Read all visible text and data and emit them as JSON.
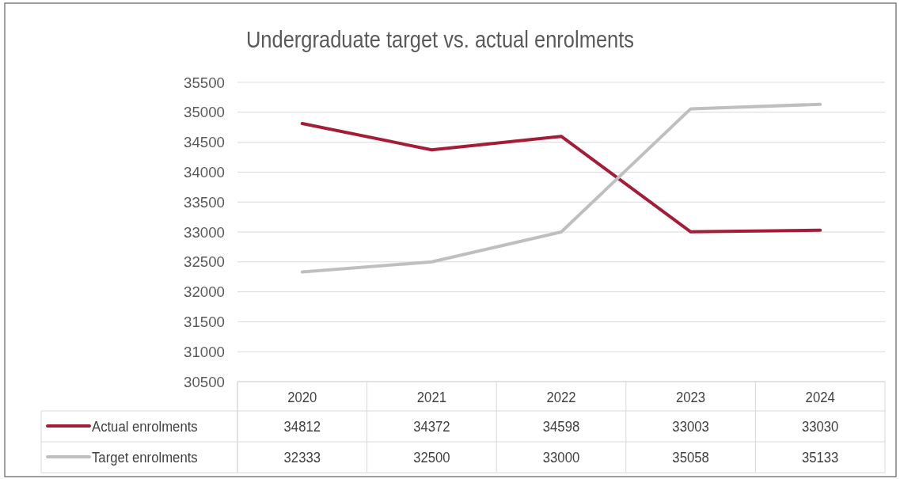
{
  "chart_data": {
    "type": "line",
    "title": "Undergraduate target vs. actual enrolments",
    "categories": [
      "2020",
      "2021",
      "2022",
      "2023",
      "2024"
    ],
    "series": [
      {
        "name": "Actual enrolments",
        "color": "#a51c36",
        "values": [
          34812,
          34372,
          34598,
          33003,
          33030
        ]
      },
      {
        "name": "Target enrolments",
        "color": "#bfbfbf",
        "values": [
          32333,
          32500,
          33000,
          35058,
          35133
        ]
      }
    ],
    "ylim": [
      30500,
      35500
    ],
    "yticks": [
      30500,
      31000,
      31500,
      32000,
      32500,
      33000,
      33500,
      34000,
      34500,
      35000,
      35500
    ],
    "grid": "y",
    "data_labels": true,
    "legend": "bottom left",
    "marker": "none",
    "line_style": "solid"
  }
}
